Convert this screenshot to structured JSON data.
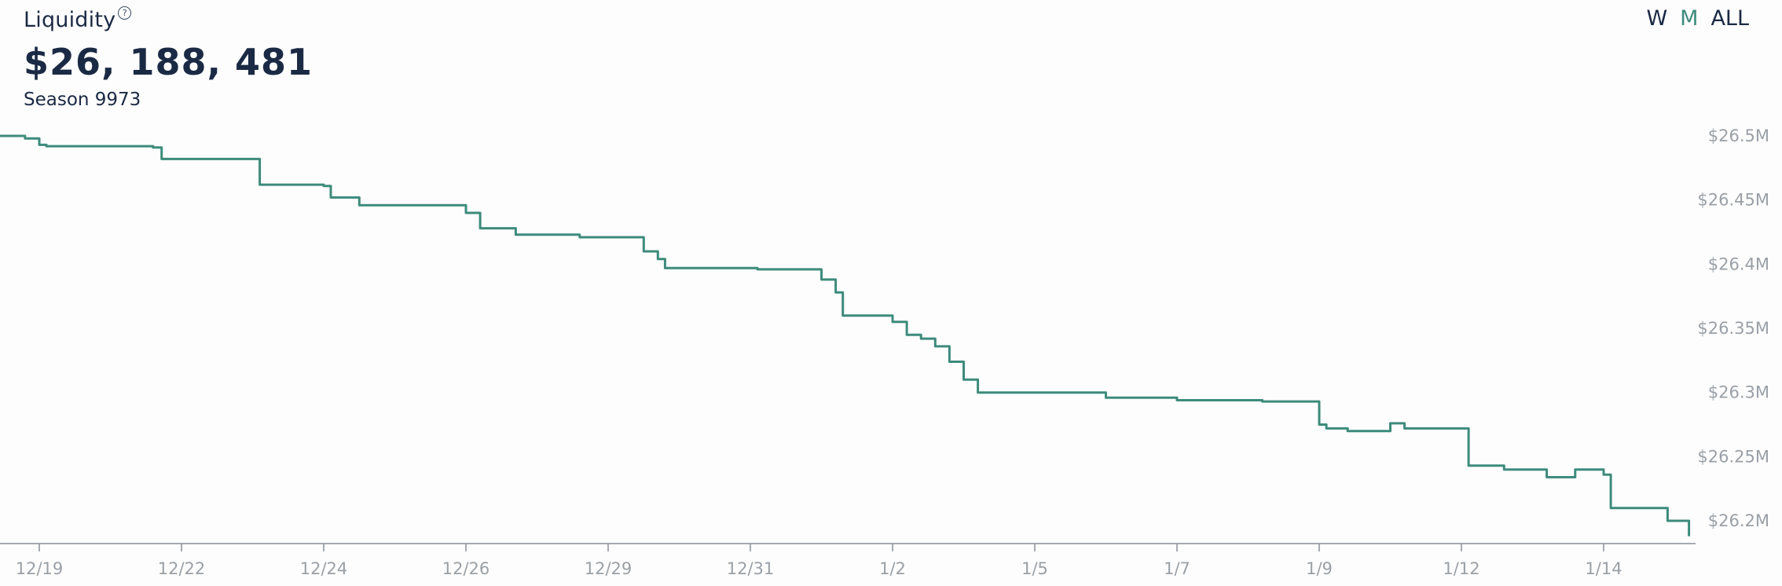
{
  "header": {
    "title": "Liquidity",
    "help_icon": "question-circle-icon",
    "value": "$26, 188, 481",
    "season": "Season 9973"
  },
  "range_selector": {
    "options": [
      "W",
      "M",
      "ALL"
    ],
    "active": "M"
  },
  "colors": {
    "line": "#3d8b7b",
    "text": "#1b2a44",
    "axis_text": "#9aa0a6",
    "axis_line": "#8a8f96",
    "active_range": "#3d8b7b"
  },
  "chart_data": {
    "type": "line",
    "title": "",
    "xlabel": "",
    "ylabel": "",
    "x_tick_labels": [
      "12/19",
      "12/22",
      "12/24",
      "12/26",
      "12/29",
      "12/31",
      "1/2",
      "1/5",
      "1/7",
      "1/9",
      "1/12",
      "1/14"
    ],
    "y_ticks": [
      26.2,
      26.25,
      26.3,
      26.35,
      26.4,
      26.45,
      26.5
    ],
    "y_tick_labels": [
      "$26.2M",
      "$26.25M",
      "$26.3M",
      "$26.35M",
      "$26.4M",
      "$26.45M",
      "$26.5M"
    ],
    "ylim": [
      26.18,
      26.5
    ],
    "xlim": [
      -0.28,
      11.6
    ],
    "grid": false,
    "legend": "none",
    "series": [
      {
        "name": "",
        "x": [
          -0.28,
          -0.1,
          0.0,
          0.05,
          0.8,
          0.86,
          1.2,
          1.5,
          1.55,
          2.0,
          2.05,
          2.25,
          2.28,
          3.0,
          3.05,
          3.1,
          3.35,
          3.4,
          3.8,
          3.85,
          4.25,
          4.35,
          4.4,
          5.0,
          5.05,
          5.5,
          5.6,
          5.65,
          6.0,
          6.1,
          6.2,
          6.3,
          6.4,
          6.5,
          6.6,
          7.0,
          7.5,
          8.0,
          8.6,
          9.0,
          9.05,
          9.1,
          9.2,
          9.5,
          9.6,
          10.0,
          10.05,
          10.1,
          10.3,
          10.6,
          10.8,
          11.0,
          11.05,
          11.3,
          11.45,
          11.6
        ],
        "y": [
          26.5,
          26.498,
          26.493,
          26.492,
          26.491,
          26.482,
          26.482,
          26.482,
          26.462,
          26.461,
          26.452,
          26.446,
          26.446,
          26.44,
          26.44,
          26.428,
          26.423,
          26.423,
          26.421,
          26.421,
          26.41,
          26.404,
          26.397,
          26.397,
          26.396,
          26.388,
          26.378,
          26.36,
          26.355,
          26.345,
          26.342,
          26.336,
          26.324,
          26.31,
          26.3,
          26.3,
          26.296,
          26.294,
          26.293,
          26.275,
          26.272,
          26.272,
          26.27,
          26.276,
          26.272,
          26.272,
          26.243,
          26.243,
          26.24,
          26.234,
          26.24,
          26.236,
          26.21,
          26.21,
          26.2,
          26.188
        ]
      }
    ]
  }
}
